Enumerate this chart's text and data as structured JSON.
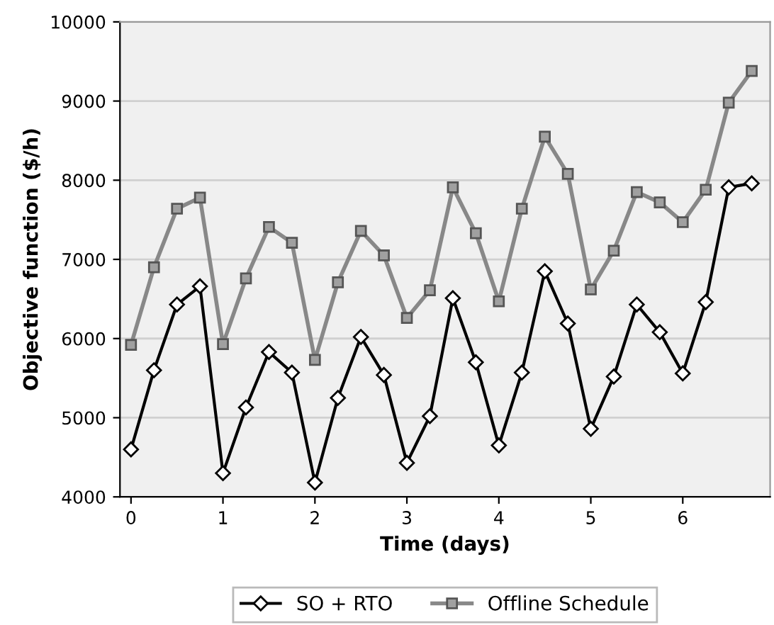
{
  "chart_data": {
    "type": "line",
    "xlabel": "Time (days)",
    "ylabel": "Objective function ($/h)",
    "x": [
      0,
      0.25,
      0.5,
      0.75,
      1,
      1.25,
      1.5,
      1.75,
      2,
      2.25,
      2.5,
      2.75,
      3,
      3.25,
      3.5,
      3.75,
      4,
      4.25,
      4.5,
      4.75,
      5,
      5.25,
      5.5,
      5.75,
      6,
      6.25,
      6.5,
      6.75
    ],
    "series": [
      {
        "name": "SO + RTO",
        "color": "#000000",
        "marker": "diamond",
        "values": [
          4600,
          5600,
          6430,
          6660,
          4300,
          5130,
          5830,
          5570,
          4180,
          5250,
          6020,
          5540,
          4430,
          5020,
          6510,
          5700,
          4650,
          5570,
          6850,
          6190,
          4860,
          5520,
          6430,
          6080,
          5560,
          6460,
          7910,
          7960
        ]
      },
      {
        "name": "Offline Schedule",
        "color": "#888888",
        "marker": "square",
        "values": [
          5920,
          6900,
          7640,
          7780,
          5930,
          6760,
          7410,
          7210,
          5730,
          6710,
          7360,
          7050,
          6260,
          6610,
          7910,
          7330,
          6470,
          7640,
          8550,
          8080,
          6620,
          7110,
          7850,
          7720,
          7470,
          7880,
          8980,
          9380
        ]
      }
    ],
    "xlim": [
      -0.12,
      6.95
    ],
    "xticks": [
      0,
      1,
      2,
      3,
      4,
      5,
      6
    ],
    "ylim": [
      4000,
      10000
    ],
    "yticks": [
      4000,
      5000,
      6000,
      7000,
      8000,
      9000,
      10000
    ],
    "grid": "y",
    "legend": "bottom"
  }
}
